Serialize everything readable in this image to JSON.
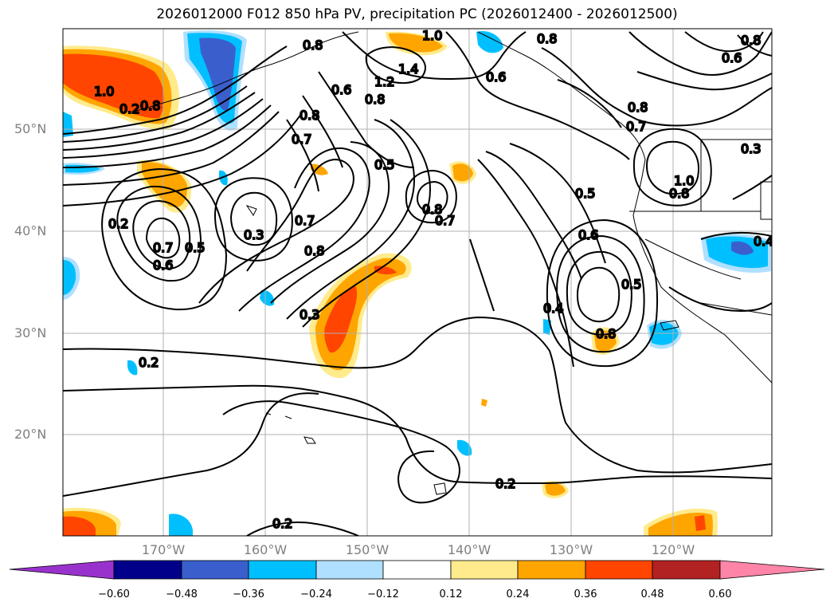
{
  "title": "2026012000 F012 850 hPa PV, precipitation PC (2026012400 - 2026012500)",
  "lat_labels": [
    "50°N",
    "40°N",
    "30°N",
    "20°N"
  ],
  "lon_labels": [
    "170°W",
    "160°W",
    "150°W",
    "140°W",
    "130°W",
    "120°W"
  ],
  "contour_labels": [
    "0.2",
    "0.3",
    "0.5",
    "0.6",
    "0.7",
    "0.8",
    "1.0",
    "1.2",
    "1.4",
    "0.4"
  ],
  "colorbar": {
    "tick_labels": [
      "−0.60",
      "−0.48",
      "−0.36",
      "−0.24",
      "−0.12",
      "0.12",
      "0.24",
      "0.36",
      "0.48",
      "0.60"
    ],
    "colors": [
      "#9932cc",
      "#00008b",
      "#3a5fcd",
      "#00bfff",
      "#b0e0ff",
      "#ffffff",
      "#ffeb8c",
      "#ffa500",
      "#ff4500",
      "#b22222",
      "#ff85a8"
    ]
  },
  "colors": {
    "positive_strong": "#ff4500",
    "positive_mid": "#ffa500",
    "positive_weak": "#ffeb8c",
    "negative_weak": "#b0e0ff",
    "negative_mid": "#00bfff",
    "negative_strong": "#3a5fcd"
  }
}
